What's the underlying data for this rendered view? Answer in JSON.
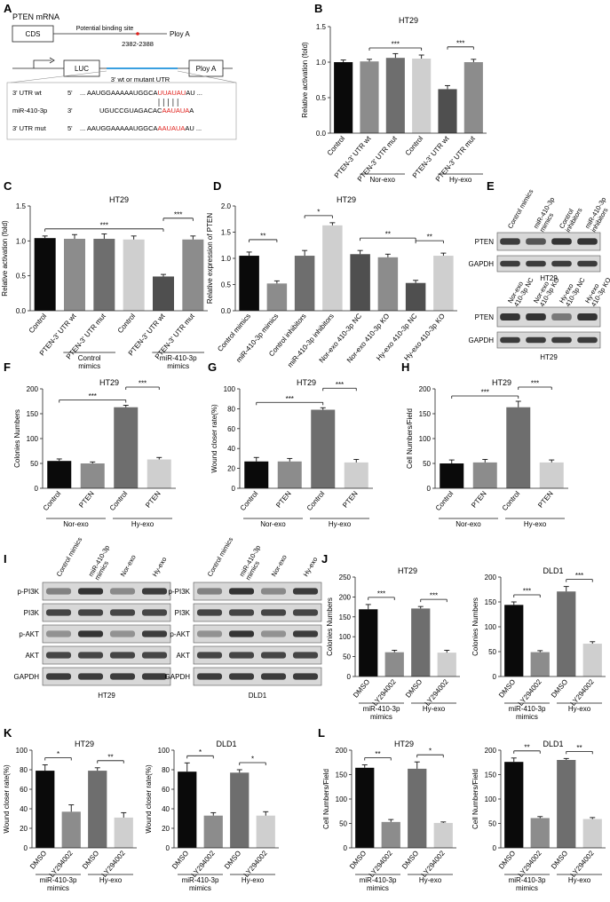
{
  "figure": {
    "colors": {
      "black": "#0a0a0a",
      "gray1": "#8c8c8c",
      "gray2": "#6e6e6e",
      "light": "#cfcfcf",
      "dark": "#4f4f4f",
      "red": "#e0201b",
      "blue": "#3aa0e0",
      "blot_bg": "#d8d8d8",
      "blot_band": "#2b2b2b"
    },
    "panelA": {
      "label": "A",
      "mrna_title": "PTEN mRNA",
      "cds": "CDS",
      "binding_site": "Potential binding site",
      "positions": "2382-2388",
      "polya1": "Ploy A",
      "luc": "LUC",
      "polya2": "Ploy A",
      "utr_caption": "3' wt or mutant UTR",
      "rows": [
        {
          "name": "3' UTR wt",
          "prefix": "5'",
          "seq_black": "... AAUGGAAAAAUGGCA",
          "seq_red": "UUAUAU",
          "seq_tail": "AU ..."
        },
        {
          "name": "miR-410-3p",
          "prefix": "3'",
          "seq_black": "UGUCCGUAGACAC",
          "seq_red": "AAUAUA",
          "seq_tail": "A"
        },
        {
          "name": "3' UTR mut",
          "prefix": "5'",
          "seq_black": "... AAUGGAAAAAUGGCA",
          "seq_red": "AAUAUA",
          "seq_tail": "AU ..."
        }
      ]
    },
    "blots": {
      "E": {
        "label": "E",
        "top_lanes": [
          "Control mimics",
          "miR-410-3p mimics",
          "Control inhibitors",
          "miR-410-3p inhibitors"
        ],
        "top_rows": [
          "PTEN",
          "GAPDH"
        ],
        "top_cell": "HT29",
        "bottom_lanes": [
          "Nor-exo 410-3p NC",
          "Nor-exo 410-3p KO",
          "Hy-exo 410-3p NC",
          "Hy-exo 410-3p KO"
        ],
        "bottom_rows": [
          "PTEN",
          "GAPDH"
        ],
        "bottom_cell": "HT29"
      },
      "I": {
        "label": "I",
        "lanes": [
          "Control mimics",
          "miR-410-3p mimics",
          "Nor-exo",
          "Hy-exo"
        ],
        "rows": [
          "p-PI3K",
          "PI3K",
          "p-AKT",
          "AKT",
          "GAPDH"
        ],
        "cells": [
          "HT29",
          "DLD1"
        ]
      }
    }
  },
  "chart_data": [
    {
      "id": "B",
      "type": "bar",
      "title": "HT29",
      "ylabel": "Relative activation (fold)",
      "ylim": [
        0,
        1.5
      ],
      "yticks": [
        "0.0",
        "0.5",
        "1.0",
        "1.5"
      ],
      "categories": [
        "Control",
        "PTEN-3' UTR wt",
        "PTEN-3' UTR mut",
        "Control",
        "PTEN-3' UTR wt",
        "PTEN-3' UTR mut"
      ],
      "values": [
        1.0,
        1.01,
        1.06,
        1.05,
        0.62,
        1.0
      ],
      "errors": [
        0.03,
        0.03,
        0.06,
        0.05,
        0.05,
        0.04
      ],
      "groups": [
        "Nor-exo",
        "Hy-exo"
      ],
      "sig": [
        "***",
        "***"
      ]
    },
    {
      "id": "C",
      "type": "bar",
      "title": "HT29",
      "ylabel": "Relative activation (fold)",
      "ylim": [
        0,
        1.5
      ],
      "yticks": [
        "0.0",
        "0.5",
        "1.0",
        "1.5"
      ],
      "categories": [
        "Control",
        "PTEN-3' UTR wt",
        "PTEN-3' UTR mut",
        "Control",
        "PTEN-3' UTR wt",
        "PTEN-3' UTR mut"
      ],
      "values": [
        1.04,
        1.03,
        1.03,
        1.02,
        0.49,
        1.02
      ],
      "errors": [
        0.03,
        0.06,
        0.07,
        0.05,
        0.03,
        0.05
      ],
      "groups": [
        "Control mimics",
        "miR-410-3p mimics"
      ],
      "sig": [
        "***",
        "***"
      ]
    },
    {
      "id": "D",
      "type": "bar",
      "title": "HT29",
      "ylabel": "Relative expression of PTEN",
      "ylim": [
        0,
        2.0
      ],
      "yticks": [
        "0.0",
        "0.5",
        "1.0",
        "1.5",
        "2.0"
      ],
      "categories": [
        "Control mimics",
        "miR-410-3p mimics",
        "Control inhibitors",
        "miR-410-3p inhibitors",
        "Nor-exo 410-3p NC",
        "Nor-exo 410-3p KO",
        "Hy-exo 410-3p NC",
        "Hy-exo 410-3p KO"
      ],
      "values": [
        1.05,
        0.52,
        1.05,
        1.63,
        1.08,
        1.02,
        0.53,
        1.05
      ],
      "errors": [
        0.07,
        0.05,
        0.1,
        0.05,
        0.07,
        0.06,
        0.05,
        0.05
      ],
      "sig": [
        "**",
        "*",
        "**",
        "**"
      ]
    },
    {
      "id": "F",
      "type": "bar",
      "title": "HT29",
      "ylabel": "Colonies Numbers",
      "ylim": [
        0,
        200
      ],
      "yticks": [
        "0",
        "50",
        "100",
        "150",
        "200"
      ],
      "categories": [
        "Control",
        "PTEN",
        "Control",
        "PTEN"
      ],
      "values": [
        55,
        50,
        163,
        58
      ],
      "errors": [
        4,
        3,
        4,
        4
      ],
      "groups": [
        "Nor-exo",
        "Hy-exo"
      ],
      "sig": [
        "***",
        "***"
      ]
    },
    {
      "id": "G",
      "type": "bar",
      "title": "HT29",
      "ylabel": "Wound closer rate(%)",
      "ylim": [
        0,
        100
      ],
      "yticks": [
        "0",
        "20",
        "40",
        "60",
        "80",
        "100"
      ],
      "categories": [
        "Control",
        "PTEN",
        "Control",
        "PTEN"
      ],
      "values": [
        27,
        27,
        79,
        26
      ],
      "errors": [
        4,
        3,
        2,
        3
      ],
      "groups": [
        "Nor-exo",
        "Hy-exo"
      ],
      "sig": [
        "***",
        "***"
      ]
    },
    {
      "id": "H",
      "type": "bar",
      "title": "HT29",
      "ylabel": "Cell Numbers/Field",
      "ylim": [
        0,
        200
      ],
      "yticks": [
        "0",
        "50",
        "100",
        "150",
        "200"
      ],
      "categories": [
        "Control",
        "PTEN",
        "Control",
        "PTEN"
      ],
      "values": [
        50,
        52,
        163,
        52
      ],
      "errors": [
        7,
        6,
        12,
        5
      ],
      "groups": [
        "Nor-exo",
        "Hy-exo"
      ],
      "sig": [
        "***",
        "***"
      ]
    },
    {
      "id": "J1",
      "type": "bar",
      "title": "HT29",
      "ylabel": "Colonies Numbers",
      "ylim": [
        0,
        250
      ],
      "yticks": [
        "0",
        "50",
        "100",
        "150",
        "200",
        "250"
      ],
      "categories": [
        "DMSO",
        "LY294002",
        "DMSO",
        "LY294002"
      ],
      "values": [
        169,
        61,
        171,
        60
      ],
      "errors": [
        12,
        5,
        5,
        6
      ],
      "groups": [
        "miR-410-3p mimics",
        "Hy-exo"
      ],
      "sig": [
        "***",
        "***"
      ]
    },
    {
      "id": "J2",
      "type": "bar",
      "title": "DLD1",
      "ylabel": "Colonies Numbers",
      "ylim": [
        0,
        200
      ],
      "yticks": [
        "0",
        "50",
        "100",
        "150",
        "200"
      ],
      "categories": [
        "DMSO",
        "LY294002",
        "DMSO",
        "LY294002"
      ],
      "values": [
        144,
        49,
        171,
        66
      ],
      "errors": [
        6,
        3,
        10,
        4
      ],
      "groups": [
        "miR-410-3p mimics",
        "Hy-exo"
      ],
      "sig": [
        "***",
        "***"
      ]
    },
    {
      "id": "K1",
      "type": "bar",
      "title": "HT29",
      "ylabel": "Wound closer rate(%)",
      "ylim": [
        0,
        100
      ],
      "yticks": [
        "0",
        "20",
        "40",
        "60",
        "80",
        "100"
      ],
      "categories": [
        "DMSO",
        "LY294002",
        "DMSO",
        "LY294002"
      ],
      "values": [
        79,
        37,
        79,
        31
      ],
      "errors": [
        6,
        7,
        3,
        5
      ],
      "groups": [
        "miR-410-3p mimics",
        "Hy-exo"
      ],
      "sig": [
        "*",
        "**"
      ]
    },
    {
      "id": "K2",
      "type": "bar",
      "title": "DLD1",
      "ylabel": "Wound closer rate(%)",
      "ylim": [
        0,
        100
      ],
      "yticks": [
        "0",
        "20",
        "40",
        "60",
        "80",
        "100"
      ],
      "categories": [
        "DMSO",
        "LY294002",
        "DMSO",
        "LY294002"
      ],
      "values": [
        78,
        33,
        77,
        33
      ],
      "errors": [
        9,
        3,
        3,
        4
      ],
      "groups": [
        "miR-410-3p mimics",
        "Hy-exo"
      ],
      "sig": [
        "*",
        "*"
      ]
    },
    {
      "id": "L1",
      "type": "bar",
      "title": "HT29",
      "ylabel": "Cell Numbers/Field",
      "ylim": [
        0,
        200
      ],
      "yticks": [
        "0",
        "50",
        "100",
        "150",
        "200"
      ],
      "categories": [
        "DMSO",
        "LY294002",
        "DMSO",
        "LY294002"
      ],
      "values": [
        164,
        53,
        162,
        51
      ],
      "errors": [
        6,
        5,
        14,
        2
      ],
      "groups": [
        "miR-410-3p mimics",
        "Hy-exo"
      ],
      "sig": [
        "**",
        "*"
      ]
    },
    {
      "id": "L2",
      "type": "bar",
      "title": "DLD1",
      "ylabel": "Cell Numbers/Field",
      "ylim": [
        0,
        200
      ],
      "yticks": [
        "0",
        "50",
        "100",
        "150",
        "200"
      ],
      "categories": [
        "DMSO",
        "LY294002",
        "DMSO",
        "LY294002"
      ],
      "values": [
        176,
        61,
        180,
        59
      ],
      "errors": [
        8,
        3,
        3,
        3
      ],
      "groups": [
        "miR-410-3p mimics",
        "Hy-exo"
      ],
      "sig": [
        "**",
        "**"
      ]
    }
  ]
}
